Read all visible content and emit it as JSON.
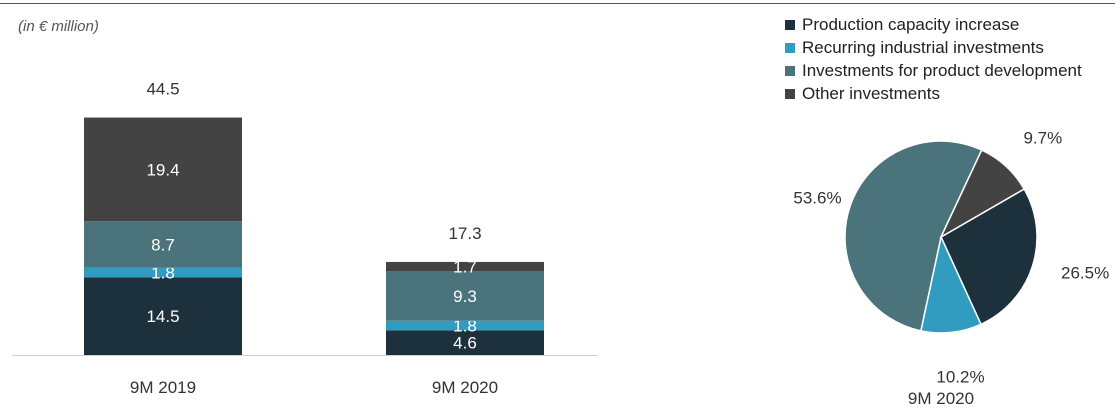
{
  "unit_note": "(in € million)",
  "colors": {
    "production": "#1c313c",
    "recurring": "#319cc0",
    "product_dev": "#4a737b",
    "other": "#434343"
  },
  "chart_data": [
    {
      "type": "bar",
      "stacked": true,
      "categories": [
        "9M 2019",
        "9M 2020"
      ],
      "series": [
        {
          "name": "Production capacity increase",
          "key": "production",
          "values": [
            14.5,
            4.6
          ]
        },
        {
          "name": "Recurring industrial investments",
          "key": "recurring",
          "values": [
            1.8,
            1.8
          ]
        },
        {
          "name": "Investments for product development",
          "key": "product_dev",
          "values": [
            8.7,
            9.3
          ]
        },
        {
          "name": "Other investments",
          "key": "other",
          "values": [
            19.4,
            1.7
          ]
        }
      ],
      "totals": [
        "44.5",
        "17.3"
      ],
      "data_labels": [
        [
          "14.5",
          "1.8",
          "8.7",
          "19.4"
        ],
        [
          "4.6",
          "1.8",
          "9.3",
          "1.7"
        ]
      ],
      "ylim": [
        0,
        50
      ],
      "grid": false
    },
    {
      "type": "pie",
      "title": "9M 2020",
      "slices": [
        {
          "name": "Production capacity increase",
          "key": "production",
          "value": 26.5,
          "label": "26.5%"
        },
        {
          "name": "Recurring industrial investments",
          "key": "recurring",
          "value": 10.2,
          "label": "10.2%"
        },
        {
          "name": "Investments for product development",
          "key": "product_dev",
          "value": 53.6,
          "label": "53.6%"
        },
        {
          "name": "Other investments",
          "key": "other",
          "value": 9.7,
          "label": "9.7%"
        }
      ],
      "legend_position": "top"
    }
  ],
  "legend": [
    {
      "label": "Production capacity increase",
      "key": "production"
    },
    {
      "label": "Recurring industrial investments",
      "key": "recurring"
    },
    {
      "label": "Investments for product development",
      "key": "product_dev"
    },
    {
      "label": "Other investments",
      "key": "other"
    }
  ]
}
